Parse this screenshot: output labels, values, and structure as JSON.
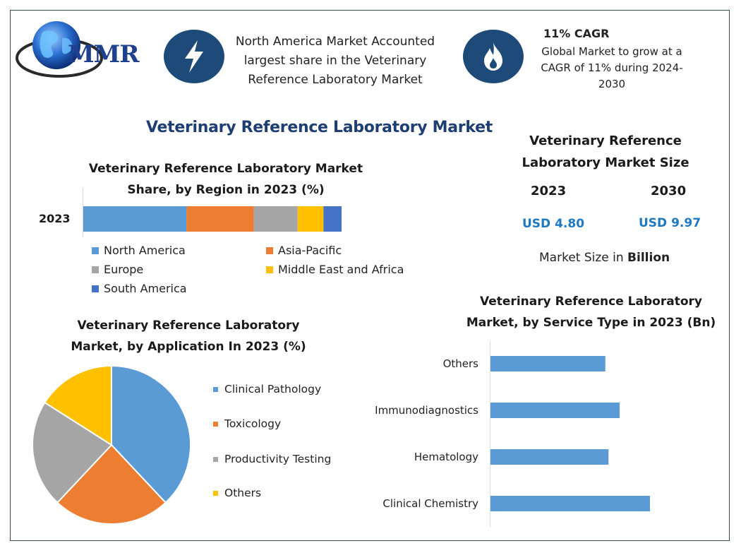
{
  "logo": {
    "text": "MMR"
  },
  "header": {
    "highlight": "North America Market Accounted largest share in the Veterinary Reference Laboratory Market",
    "cagr_title": "11% CAGR",
    "cagr_text": "Global Market to grow at a CAGR of 11% during 2024-2030"
  },
  "main_title": "Veterinary Reference Laboratory Market",
  "market_size": {
    "title": "Veterinary Reference Laboratory Market Size",
    "year1": "2023",
    "year2": "2030",
    "value1": "USD 4.80",
    "value2": "USD 9.97",
    "unit_prefix": "Market Size in ",
    "unit_bold": "Billion"
  },
  "chart_data": [
    {
      "type": "bar",
      "orientation": "horizontal-stacked",
      "title": "Veterinary Reference Laboratory Market Share, by Region in 2023 (%)",
      "categories": [
        "2023"
      ],
      "series": [
        {
          "name": "North America",
          "values": [
            40
          ],
          "color": "#5b9bd5"
        },
        {
          "name": "Asia-Pacific",
          "values": [
            26
          ],
          "color": "#ed7d31"
        },
        {
          "name": "Europe",
          "values": [
            17
          ],
          "color": "#a5a5a5"
        },
        {
          "name": "Middle East and Africa",
          "values": [
            10
          ],
          "color": "#ffc000"
        },
        {
          "name": "South America",
          "values": [
            7
          ],
          "color": "#4472c4"
        }
      ],
      "legend": "bottom"
    },
    {
      "type": "pie",
      "title": "Veterinary Reference Laboratory Market, by Application In 2023 (%)",
      "slices": [
        {
          "name": "Clinical Pathology",
          "value": 38,
          "color": "#5b9bd5"
        },
        {
          "name": "Toxicology",
          "value": 24,
          "color": "#ed7d31"
        },
        {
          "name": "Productivity Testing",
          "value": 22,
          "color": "#a5a5a5"
        },
        {
          "name": "Others",
          "value": 16,
          "color": "#ffc000"
        }
      ],
      "legend": "right"
    },
    {
      "type": "bar",
      "orientation": "horizontal",
      "title": "Veterinary Reference Laboratory Market, by Service Type in 2023 (Bn)",
      "categories": [
        "Others",
        "Immunodiagnostics",
        "Hematology",
        "Clinical Chemistry"
      ],
      "values": [
        0.72,
        0.81,
        0.74,
        1.0
      ],
      "color": "#5b9bd5",
      "xlim": [
        0,
        1.0
      ]
    }
  ]
}
